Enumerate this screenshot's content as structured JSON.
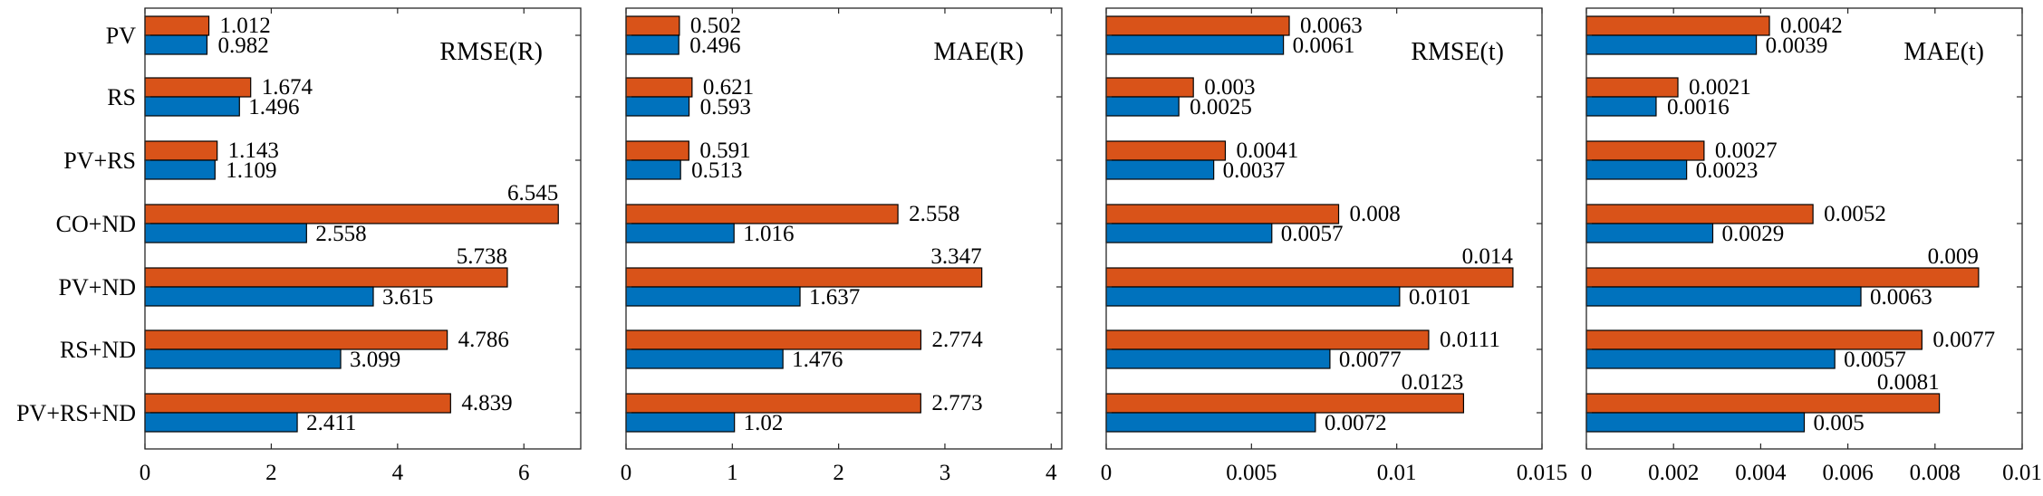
{
  "colors": {
    "series_a": "#D95319",
    "series_b": "#0072BD",
    "axis": "#262626",
    "bar_edge": "#000000"
  },
  "chart_data": [
    {
      "type": "bar",
      "orientation": "horizontal",
      "title": "RMSE(R)",
      "legend": "none",
      "categories": [
        "PV",
        "RS",
        "PV+RS",
        "CO+ND",
        "PV+ND",
        "RS+ND",
        "PV+RS+ND"
      ],
      "series": [
        {
          "name": "orange",
          "values": [
            1.012,
            1.674,
            1.143,
            6.545,
            5.738,
            4.786,
            4.839
          ],
          "labels": [
            "1.012",
            "1.674",
            "1.143",
            "6.545",
            "5.738",
            "4.786",
            "4.839"
          ]
        },
        {
          "name": "blue",
          "values": [
            0.982,
            1.496,
            1.109,
            2.558,
            3.615,
            3.099,
            2.411
          ],
          "labels": [
            "0.982",
            "1.496",
            "1.109",
            "2.558",
            "3.615",
            "3.099",
            "2.411"
          ]
        }
      ],
      "xlim": [
        0,
        6.9
      ],
      "xticks": [
        0,
        2,
        4,
        6
      ],
      "xtick_labels": [
        "0",
        "2",
        "4",
        "6"
      ]
    },
    {
      "type": "bar",
      "orientation": "horizontal",
      "title": "MAE(R)",
      "legend": "none",
      "categories": [
        "PV",
        "RS",
        "PV+RS",
        "CO+ND",
        "PV+ND",
        "RS+ND",
        "PV+RS+ND"
      ],
      "series": [
        {
          "name": "orange",
          "values": [
            0.502,
            0.621,
            0.591,
            2.558,
            3.347,
            2.774,
            2.773
          ],
          "labels": [
            "0.502",
            "0.621",
            "0.591",
            "2.558",
            "3.347",
            "2.774",
            "2.773"
          ]
        },
        {
          "name": "blue",
          "values": [
            0.496,
            0.593,
            0.513,
            1.016,
            1.637,
            1.476,
            1.02
          ],
          "labels": [
            "0.496",
            "0.593",
            "0.513",
            "1.016",
            "1.637",
            "1.476",
            "1.02"
          ]
        }
      ],
      "xlim": [
        0,
        4.1
      ],
      "xticks": [
        0,
        1,
        2,
        3,
        4
      ],
      "xtick_labels": [
        "0",
        "1",
        "2",
        "3",
        "4"
      ]
    },
    {
      "type": "bar",
      "orientation": "horizontal",
      "title": "RMSE(t)",
      "legend": "none",
      "categories": [
        "PV",
        "RS",
        "PV+RS",
        "CO+ND",
        "PV+ND",
        "RS+ND",
        "PV+RS+ND"
      ],
      "series": [
        {
          "name": "orange",
          "values": [
            0.0063,
            0.003,
            0.0041,
            0.008,
            0.014,
            0.0111,
            0.0123
          ],
          "labels": [
            "0.0063",
            "0.003",
            "0.0041",
            "0.008",
            "0.014",
            "0.0111",
            "0.0123"
          ]
        },
        {
          "name": "blue",
          "values": [
            0.0061,
            0.0025,
            0.0037,
            0.0057,
            0.0101,
            0.0077,
            0.0072
          ],
          "labels": [
            "0.0061",
            "0.0025",
            "0.0037",
            "0.0057",
            "0.0101",
            "0.0077",
            "0.0072"
          ]
        }
      ],
      "xlim": [
        0,
        0.015
      ],
      "xticks": [
        0,
        0.005,
        0.01,
        0.015
      ],
      "xtick_labels": [
        "0",
        "0.005",
        "0.01",
        "0.015"
      ]
    },
    {
      "type": "bar",
      "orientation": "horizontal",
      "title": "MAE(t)",
      "legend": "none",
      "categories": [
        "PV",
        "RS",
        "PV+RS",
        "CO+ND",
        "PV+ND",
        "RS+ND",
        "PV+RS+ND"
      ],
      "series": [
        {
          "name": "orange",
          "values": [
            0.0042,
            0.0021,
            0.0027,
            0.0052,
            0.009,
            0.0077,
            0.0081
          ],
          "labels": [
            "0.0042",
            "0.0021",
            "0.0027",
            "0.0052",
            "0.009",
            "0.0077",
            "0.0081"
          ]
        },
        {
          "name": "blue",
          "values": [
            0.0039,
            0.0016,
            0.0023,
            0.0029,
            0.0063,
            0.0057,
            0.005
          ],
          "labels": [
            "0.0039",
            "0.0016",
            "0.0023",
            "0.0029",
            "0.0063",
            "0.0057",
            "0.005"
          ]
        }
      ],
      "xlim": [
        0,
        0.01
      ],
      "xticks": [
        0,
        0.002,
        0.004,
        0.006,
        0.008,
        0.01
      ],
      "xtick_labels": [
        "0",
        "0.002",
        "0.004",
        "0.006",
        "0.008",
        "0.01"
      ]
    }
  ]
}
